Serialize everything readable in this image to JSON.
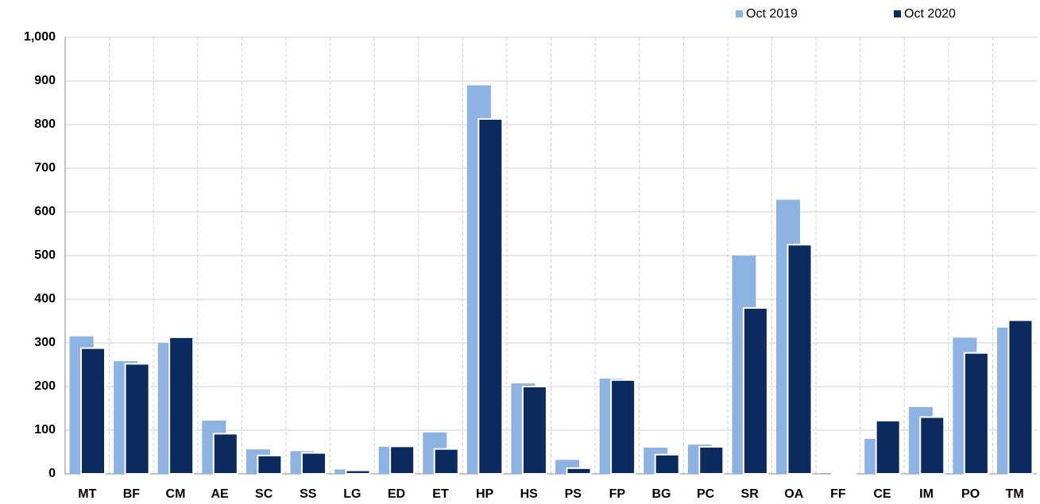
{
  "chart_data": {
    "type": "bar",
    "categories": [
      "MT",
      "BF",
      "CM",
      "AE",
      "SC",
      "SS",
      "LG",
      "ED",
      "ET",
      "HP",
      "HS",
      "PS",
      "FP",
      "BG",
      "PC",
      "SR",
      "OA",
      "FF",
      "CE",
      "IM",
      "PO",
      "TM"
    ],
    "series": [
      {
        "name": "Oct 2019",
        "color": "#8db3e2",
        "values": [
          315,
          258,
          300,
          122,
          56,
          52,
          10,
          62,
          95,
          890,
          207,
          32,
          218,
          60,
          67,
          500,
          628,
          2,
          80,
          153,
          312,
          335
        ]
      },
      {
        "name": "Oct 2020",
        "color": "#0b2a5e",
        "values": [
          288,
          252,
          313,
          92,
          42,
          48,
          8,
          63,
          57,
          813,
          200,
          13,
          215,
          44,
          62,
          380,
          525,
          1,
          122,
          130,
          277,
          352
        ]
      }
    ],
    "ylim": [
      0,
      1000
    ],
    "yticks": [
      0,
      100,
      200,
      300,
      400,
      500,
      600,
      700,
      800,
      900,
      {
        "value": 1000,
        "label": "1,000"
      }
    ],
    "grid": true,
    "legend": "top-right"
  }
}
